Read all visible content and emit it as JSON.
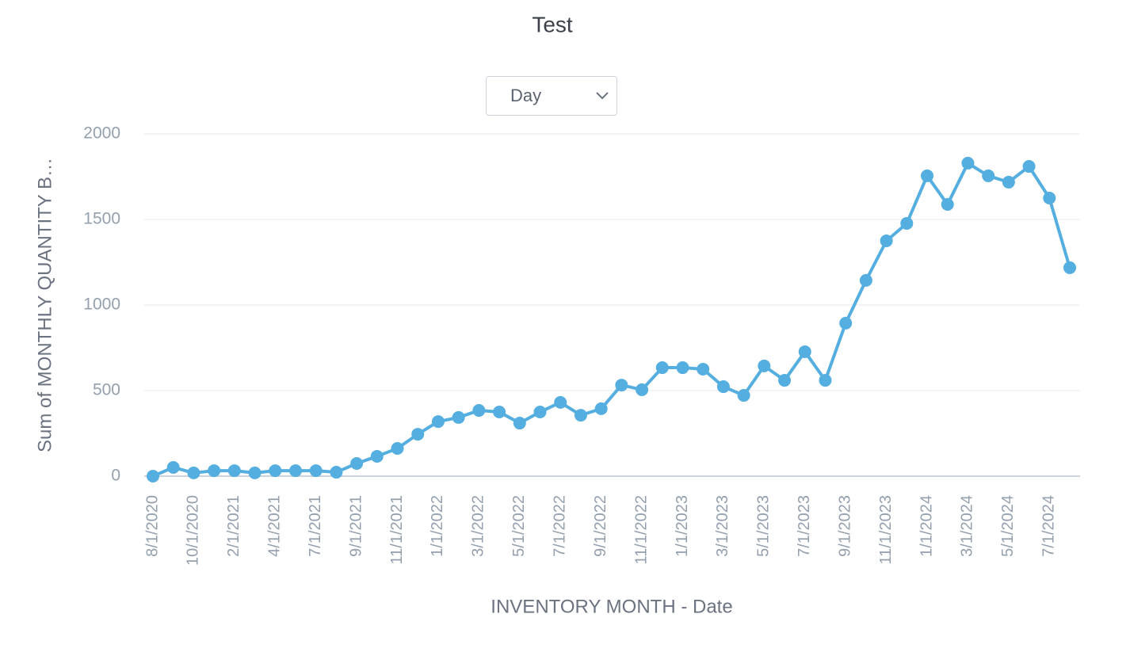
{
  "chart_data": {
    "type": "line",
    "title": "Test",
    "control": {
      "label": "Day"
    },
    "x_label": "INVENTORY MONTH - Date",
    "y_label": "Sum of MONTHLY QUANTITY B…",
    "categories": [
      "8/1/2020",
      null,
      "10/1/2020",
      null,
      "2/1/2021",
      null,
      "4/1/2021",
      null,
      "7/1/2021",
      null,
      "9/1/2021",
      null,
      "11/1/2021",
      null,
      "1/1/2022",
      null,
      "3/1/2022",
      null,
      "5/1/2022",
      null,
      "7/1/2022",
      null,
      "9/1/2022",
      null,
      "11/1/2022",
      null,
      "1/1/2023",
      null,
      "3/1/2023",
      null,
      "5/1/2023",
      null,
      "7/1/2023",
      null,
      "9/1/2023",
      null,
      "11/1/2023",
      null,
      "1/1/2024",
      null,
      "3/1/2024",
      null,
      "5/1/2024",
      null,
      "7/1/2024",
      null
    ],
    "series": [
      {
        "color": "#55aee0",
        "values": [
          0,
          51,
          19,
          32,
          32,
          19,
          32,
          32,
          32,
          23,
          74,
          116,
          162,
          245,
          319,
          343,
          384,
          375,
          310,
          375,
          431,
          356,
          394,
          532,
          505,
          634,
          634,
          625,
          523,
          472,
          644,
          560,
          727,
          560,
          894,
          1144,
          1375,
          1477,
          1755,
          1588,
          1829,
          1755,
          1718,
          1810,
          1625,
          1218
        ]
      }
    ],
    "ylim": [
      0,
      2000
    ],
    "yticks": [
      0,
      500,
      1000,
      1500,
      2000
    ],
    "grid": true
  }
}
